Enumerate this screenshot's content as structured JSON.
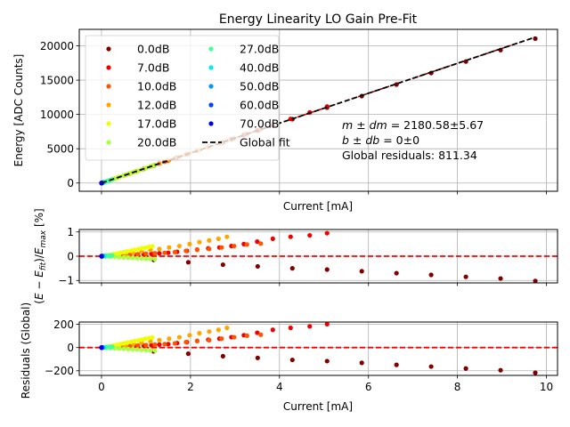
{
  "chart_data": [
    {
      "type": "scatter",
      "title": "Energy Linearity LO Gain Pre-Fit",
      "xlabel": "Current [mA]",
      "ylabel": "Energy [ADC Counts]",
      "xlim": [
        -0.5,
        10.25
      ],
      "ylim": [
        -1200,
        22400
      ],
      "xticks": [
        0,
        2,
        4,
        6,
        8,
        10
      ],
      "yticks": [
        0,
        5000,
        10000,
        15000,
        20000
      ],
      "ytick_labels": [
        "0",
        "5000",
        "10000",
        "15000",
        "20000"
      ],
      "grid": true,
      "legend_position": "upper-left",
      "legend_columns": 2,
      "fit": {
        "name": "Global fit",
        "slope": 2180.58,
        "intercept": 0,
        "style": "dashed",
        "color": "#000000"
      },
      "annotations": [
        "m ± dm = 2180.58±5.67",
        "b ± db = 0±0",
        "Global residuals: 811.34"
      ],
      "annotation_parts": {
        "m_label": "m ± dm",
        "m_value": " = 2180.58±5.67",
        "b_label": "b ± db",
        "b_value": " = 0±0",
        "residuals": "Global residuals: 811.34"
      }
    },
    {
      "type": "scatter",
      "title": "",
      "xlabel": "",
      "ylabel": "(E − E_fit)/E_max [%]",
      "ylim": [
        -1.1,
        1.1
      ],
      "yticks": [
        -1,
        0,
        1
      ],
      "ytick_labels": [
        "−1",
        "0",
        "1"
      ],
      "reference_line": {
        "y": 0,
        "color": "#ff0000",
        "style": "dashed"
      },
      "grid": true
    },
    {
      "type": "scatter",
      "title": "",
      "xlabel": "Current [mA]",
      "ylabel": "Residuals (Global)",
      "ylim": [
        -240,
        220
      ],
      "yticks": [
        -200,
        0,
        200
      ],
      "ytick_labels": [
        "−200",
        "0",
        "200"
      ],
      "reference_line": {
        "y": 0,
        "color": "#ff0000",
        "style": "dashed"
      },
      "grid": true
    }
  ],
  "series": [
    {
      "name": "0.0dB",
      "color": "#800000",
      "x": [
        1.17,
        1.95,
        2.73,
        3.51,
        4.29,
        5.07,
        5.85,
        6.63,
        7.41,
        8.19,
        8.97,
        9.75
      ],
      "pct": [
        -0.15,
        -0.25,
        -0.35,
        -0.42,
        -0.5,
        -0.55,
        -0.62,
        -0.7,
        -0.77,
        -0.85,
        -0.92,
        -1.02
      ]
    },
    {
      "name": "7.0dB",
      "color": "#ee0000",
      "x": [
        0.5,
        0.62,
        0.78,
        0.95,
        1.12,
        1.3,
        1.5,
        1.7,
        1.92,
        2.15,
        2.4,
        2.65,
        2.92,
        3.2,
        3.5,
        3.85,
        4.25,
        4.68,
        5.07
      ],
      "pct": [
        0.02,
        0.04,
        0.06,
        0.08,
        0.1,
        0.12,
        0.14,
        0.18,
        0.22,
        0.27,
        0.32,
        0.36,
        0.42,
        0.5,
        0.6,
        0.72,
        0.8,
        0.86,
        0.95
      ]
    },
    {
      "name": "10.0dB",
      "color": "#ff5500",
      "x": [
        0.35,
        0.5,
        0.65,
        0.82,
        1.0,
        1.2,
        1.42,
        1.65,
        1.9,
        2.15,
        2.42,
        2.7,
        2.98,
        3.27,
        3.58
      ],
      "pct": [
        0.02,
        0.04,
        0.06,
        0.08,
        0.1,
        0.12,
        0.14,
        0.17,
        0.22,
        0.26,
        0.3,
        0.36,
        0.42,
        0.48,
        0.52
      ]
    },
    {
      "name": "12.0dB",
      "color": "#ffa500",
      "x": [
        0.25,
        0.4,
        0.55,
        0.72,
        0.9,
        1.1,
        1.3,
        1.52,
        1.75,
        1.98,
        2.2,
        2.42,
        2.63,
        2.82
      ],
      "pct": [
        0.03,
        0.06,
        0.1,
        0.15,
        0.2,
        0.25,
        0.3,
        0.36,
        0.42,
        0.5,
        0.58,
        0.65,
        0.72,
        0.8
      ]
    },
    {
      "name": "17.0dB",
      "color": "#eeff00",
      "x": [
        0.1,
        0.18,
        0.26,
        0.34,
        0.42,
        0.5,
        0.58,
        0.66,
        0.74,
        0.82,
        0.9,
        0.98,
        1.06,
        1.14
      ],
      "pct": [
        0.02,
        0.05,
        0.08,
        0.11,
        0.14,
        0.17,
        0.2,
        0.23,
        0.26,
        0.29,
        0.32,
        0.35,
        0.38,
        0.41
      ]
    },
    {
      "name": "20.0dB",
      "color": "#aaff44",
      "x": [
        0.1,
        0.2,
        0.3,
        0.4,
        0.5,
        0.6,
        0.7,
        0.8,
        0.9,
        1.0,
        1.1,
        1.2
      ],
      "pct": [
        -0.01,
        -0.02,
        -0.03,
        -0.04,
        -0.05,
        -0.06,
        -0.07,
        -0.08,
        -0.09,
        -0.1,
        -0.11,
        -0.12
      ]
    },
    {
      "name": "27.0dB",
      "color": "#44ff99",
      "x": [
        0.03,
        0.06,
        0.09,
        0.12,
        0.15,
        0.18,
        0.21,
        0.24
      ],
      "pct": [
        0.0,
        0.01,
        0.01,
        0.02,
        0.02,
        0.02,
        0.03,
        0.03
      ]
    },
    {
      "name": "40.0dB",
      "color": "#00eeee",
      "x": [
        0.01,
        0.02,
        0.03,
        0.04,
        0.05,
        0.06
      ],
      "pct": [
        0.0,
        0.0,
        0.01,
        0.01,
        0.01,
        0.01
      ]
    },
    {
      "name": "50.0dB",
      "color": "#0099ff",
      "x": [
        0.003,
        0.006,
        0.01,
        0.013,
        0.016
      ],
      "pct": [
        0.0,
        0.0,
        0.0,
        0.0,
        0.0
      ]
    },
    {
      "name": "60.0dB",
      "color": "#0044ff",
      "x": [
        0.001,
        0.002,
        0.003,
        0.004,
        0.005
      ],
      "pct": [
        0.0,
        0.0,
        0.0,
        0.0,
        0.0
      ]
    },
    {
      "name": "70.0dB",
      "color": "#0000ee",
      "x": [
        0.0003,
        0.0006,
        0.001,
        0.0013,
        0.0016
      ],
      "pct": [
        0.0,
        0.0,
        0.0,
        0.0,
        0.0
      ]
    }
  ],
  "legend": {
    "fit_label": "Global fit"
  },
  "residual_scale_adc_per_pct": 212.6
}
